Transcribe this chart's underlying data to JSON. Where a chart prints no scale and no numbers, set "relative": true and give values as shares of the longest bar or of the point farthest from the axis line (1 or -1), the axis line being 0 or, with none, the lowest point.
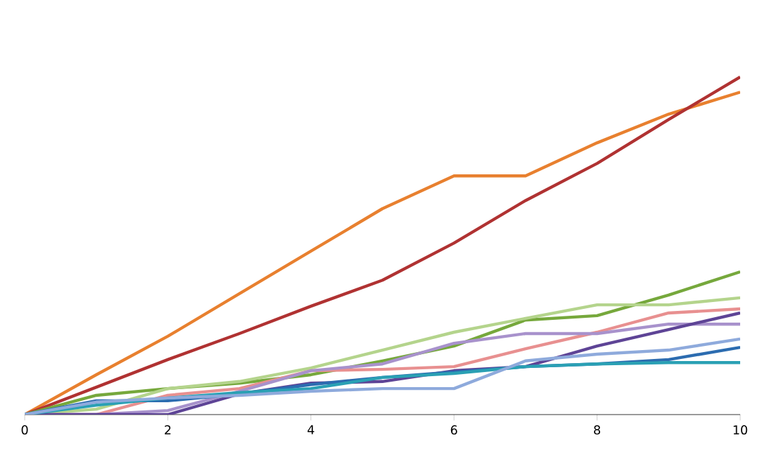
{
  "chart_data": {
    "type": "line",
    "relative": true,
    "x": [
      0,
      1,
      2,
      3,
      4,
      5,
      6,
      7,
      8,
      9,
      10
    ],
    "xlim": [
      0,
      10
    ],
    "xticks": [
      0,
      2,
      4,
      6,
      8,
      10
    ],
    "grid": false,
    "marker": "none",
    "line_style": "solid",
    "series": [
      {
        "color": "#e8802f",
        "values": [
          0,
          0.118,
          0.232,
          0.358,
          0.484,
          0.61,
          0.707,
          0.707,
          0.805,
          0.89,
          0.955
        ]
      },
      {
        "color": "#b03232",
        "values": [
          0,
          0.081,
          0.163,
          0.24,
          0.321,
          0.398,
          0.508,
          0.634,
          0.744,
          0.874,
          1
        ]
      },
      {
        "color": "#76a83c",
        "values": [
          0,
          0.057,
          0.077,
          0.093,
          0.118,
          0.159,
          0.203,
          0.28,
          0.293,
          0.354,
          0.423
        ]
      },
      {
        "color": "#b4d48c",
        "values": [
          0,
          0.016,
          0.077,
          0.098,
          0.138,
          0.191,
          0.244,
          0.285,
          0.325,
          0.325,
          0.346
        ]
      },
      {
        "color": "#e89090",
        "values": [
          0,
          0,
          0.057,
          0.077,
          0.13,
          0.134,
          0.142,
          0.195,
          0.244,
          0.301,
          0.313
        ]
      },
      {
        "color": "#a892cc",
        "values": [
          0,
          0,
          0.012,
          0.069,
          0.13,
          0.15,
          0.211,
          0.24,
          0.24,
          0.268,
          0.268
        ]
      },
      {
        "color": "#5e4496",
        "values": [
          0,
          0,
          0,
          0.061,
          0.093,
          0.098,
          0.13,
          0.142,
          0.203,
          0.252,
          0.301
        ]
      },
      {
        "color": "#2c6cb0",
        "values": [
          0,
          0.041,
          0.041,
          0.061,
          0.089,
          0.11,
          0.126,
          0.142,
          0.15,
          0.163,
          0.199
        ]
      },
      {
        "color": "#2aa0b4",
        "values": [
          0,
          0.028,
          0.049,
          0.065,
          0.077,
          0.11,
          0.122,
          0.142,
          0.15,
          0.154,
          0.154
        ]
      },
      {
        "color": "#8eaadc",
        "values": [
          0,
          0.037,
          0.049,
          0.057,
          0.069,
          0.077,
          0.077,
          0.159,
          0.179,
          0.191,
          0.224
        ]
      }
    ]
  }
}
